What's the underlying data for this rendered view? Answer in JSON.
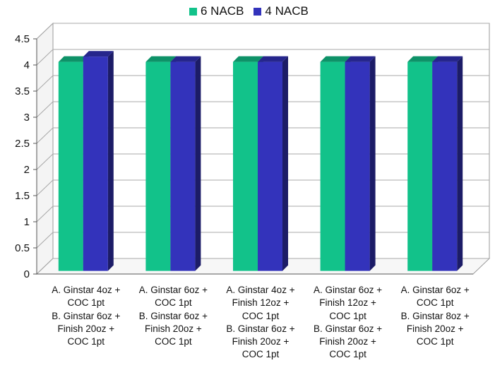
{
  "title_fragment": "",
  "legend": [
    {
      "name": "6 NACB",
      "color": "#12c28a"
    },
    {
      "name": "4 NACB",
      "color": "#3333bb"
    }
  ],
  "chart_data": {
    "type": "bar",
    "categories": [
      [
        "A. Ginstar 4oz +",
        "COC 1pt",
        "B. Ginstar 6oz +",
        "Finish 20oz +",
        "COC 1pt"
      ],
      [
        "A. Ginstar 6oz +",
        "COC 1pt",
        "B. Ginstar 6oz +",
        "Finish 20oz +",
        "COC 1pt"
      ],
      [
        "A. Ginstar 4oz +",
        "Finish 12oz +",
        "COC 1pt",
        "B. Ginstar 6oz +",
        "Finish 20oz +",
        "COC 1pt"
      ],
      [
        "A. Ginstar 6oz +",
        "Finish 12oz +",
        "COC 1pt",
        "B. Ginstar 6oz +",
        "Finish 20oz +",
        "COC 1pt"
      ],
      [
        "A. Ginstar 6oz +",
        "COC 1pt",
        "B. Ginstar 8oz +",
        "Finish 20oz +",
        "COC 1pt"
      ]
    ],
    "series": [
      {
        "name": "6 NACB",
        "values": [
          4.0,
          4.0,
          4.0,
          4.0,
          4.0
        ]
      },
      {
        "name": "4 NACB",
        "values": [
          4.1,
          4.0,
          4.0,
          4.0,
          4.0
        ]
      }
    ],
    "ylim": [
      0,
      4.5
    ],
    "yticks": [
      "0",
      "0.5",
      "1",
      "1.5",
      "2",
      "2.5",
      "3",
      "3.5",
      "4",
      "4.5"
    ],
    "grid": true,
    "legend_position": "top",
    "style": "3d-clustered-bar"
  }
}
